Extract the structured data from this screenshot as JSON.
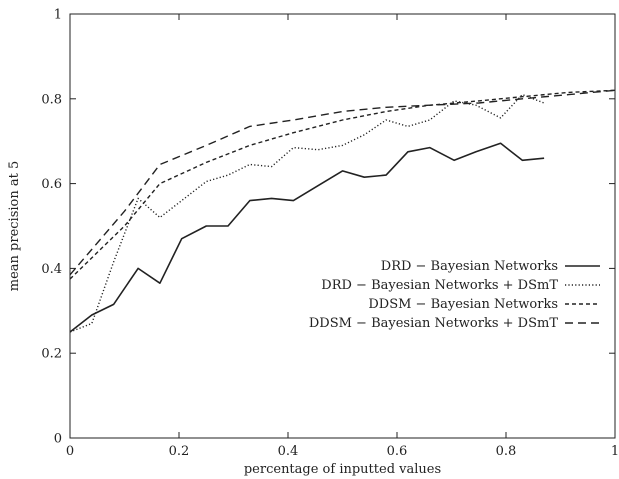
{
  "chart_data": {
    "type": "line",
    "xlabel": "percentage of inputted values",
    "ylabel": "mean precision at 5",
    "xlim": [
      0,
      1
    ],
    "ylim": [
      0,
      1
    ],
    "xticks": [
      0,
      0.2,
      0.4,
      0.6,
      0.8,
      1
    ],
    "yticks": [
      0,
      0.2,
      0.4,
      0.6,
      0.8,
      1
    ],
    "xtick_labels": [
      "0",
      "0.2",
      "0.4",
      "0.6",
      "0.8",
      "1"
    ],
    "ytick_labels": [
      "0",
      "0.2",
      "0.4",
      "0.6",
      "0.8",
      "1"
    ],
    "grid": false,
    "legend_position": "lower-right",
    "series": [
      {
        "name": "DRD − Bayesian Networks",
        "style": "solid",
        "x": [
          0,
          0.04,
          0.08,
          0.125,
          0.165,
          0.205,
          0.25,
          0.29,
          0.33,
          0.37,
          0.41,
          0.455,
          0.5,
          0.54,
          0.58,
          0.62,
          0.66,
          0.705,
          0.745,
          0.79,
          0.83,
          0.87
        ],
        "y": [
          0.25,
          0.29,
          0.315,
          0.4,
          0.365,
          0.47,
          0.5,
          0.5,
          0.56,
          0.565,
          0.56,
          0.595,
          0.63,
          0.615,
          0.62,
          0.675,
          0.685,
          0.655,
          0.675,
          0.695,
          0.655,
          0.66
        ]
      },
      {
        "name": "DRD − Bayesian Networks + DSmT",
        "style": "dotted",
        "x": [
          0,
          0.04,
          0.08,
          0.125,
          0.165,
          0.205,
          0.25,
          0.29,
          0.33,
          0.37,
          0.41,
          0.455,
          0.5,
          0.54,
          0.58,
          0.62,
          0.66,
          0.705,
          0.745,
          0.79,
          0.83,
          0.87
        ],
        "y": [
          0.25,
          0.27,
          0.415,
          0.565,
          0.52,
          0.56,
          0.605,
          0.62,
          0.645,
          0.64,
          0.685,
          0.68,
          0.69,
          0.715,
          0.75,
          0.735,
          0.75,
          0.795,
          0.785,
          0.755,
          0.81,
          0.79
        ]
      },
      {
        "name": "DDSM − Bayesian Networks",
        "style": "dashed-short",
        "x": [
          0,
          0.1,
          0.165,
          0.25,
          0.33,
          0.41,
          0.5,
          0.58,
          0.66,
          0.75,
          0.83,
          0.915,
          1
        ],
        "y": [
          0.375,
          0.5,
          0.6,
          0.65,
          0.69,
          0.72,
          0.75,
          0.77,
          0.785,
          0.795,
          0.805,
          0.815,
          0.82
        ]
      },
      {
        "name": "DDSM − Bayesian Networks + DSmT",
        "style": "dashed-long",
        "x": [
          0,
          0.1,
          0.165,
          0.25,
          0.33,
          0.41,
          0.5,
          0.58,
          0.66,
          0.75,
          0.83,
          0.915,
          1
        ],
        "y": [
          0.385,
          0.535,
          0.645,
          0.69,
          0.735,
          0.75,
          0.77,
          0.78,
          0.785,
          0.79,
          0.8,
          0.81,
          0.82
        ]
      }
    ]
  }
}
